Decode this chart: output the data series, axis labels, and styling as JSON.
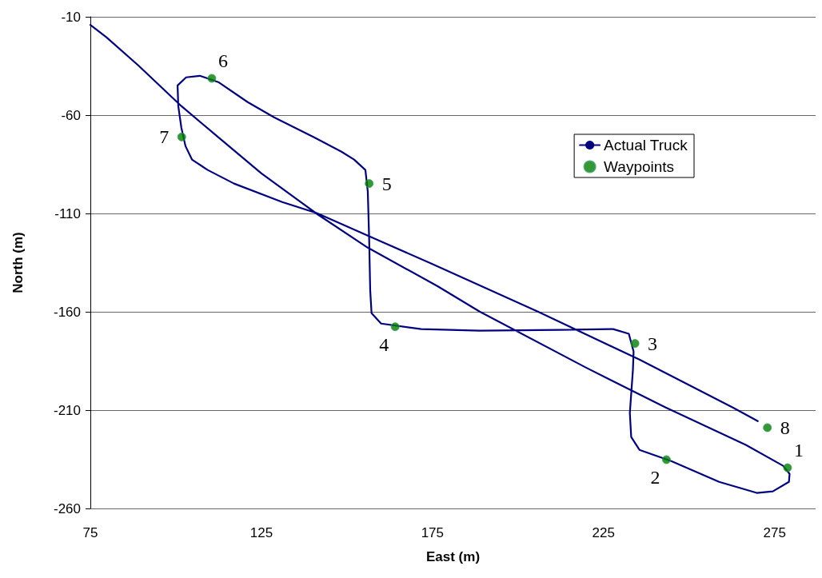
{
  "chart_data": {
    "type": "line",
    "xlabel": "East (m)",
    "ylabel": "North (m)",
    "xlim": [
      75,
      287
    ],
    "xticks": [
      75,
      125,
      175,
      225,
      275
    ],
    "ylim": [
      -260,
      -10
    ],
    "yticks": [
      -260,
      -210,
      -160,
      -110,
      -60,
      -10
    ],
    "grid": "y",
    "legend": "right",
    "series": [
      {
        "name": "Actual Truck",
        "color": "#000080",
        "marker": "none",
        "line_style": "solid",
        "x": [
          75.0,
          79.7,
          89.0,
          101.6,
          111.0,
          125.0,
          141.3,
          156.1,
          176.4,
          188.8,
          219.8,
          243.2,
          266.6,
          277.5,
          279.4,
          279.2,
          274.5,
          269.8,
          258.8,
          244.8,
          235.5,
          233.1,
          232.7,
          233.6,
          233.8,
          232.4,
          227.8,
          212.1,
          188.8,
          171.7,
          160.0,
          157.2,
          156.8,
          156.5,
          156.1,
          155.4,
          152.1,
          148.4,
          140.4,
          128.7,
          121.0,
          112.4,
          107.0,
          103.0,
          100.5,
          100.7,
          101.6,
          102.8,
          104.7,
          109.3,
          117.0,
          131.1,
          141.3,
          156.1,
          174.7,
          205.8,
          235.5,
          262.8,
          270.1
        ],
        "values": [
          -14.1,
          -20.4,
          -34.7,
          -55.4,
          -69.2,
          -89.6,
          -110.3,
          -127.4,
          -146.9,
          -159.9,
          -188.3,
          -208.7,
          -227.7,
          -238.3,
          -242.4,
          -246.5,
          -251.3,
          -252.1,
          -246.5,
          -235.9,
          -230.2,
          -223.7,
          -211.5,
          -189.5,
          -180.2,
          -171.2,
          -168.8,
          -169.2,
          -169.6,
          -168.8,
          -166.0,
          -160.7,
          -148.9,
          -123.3,
          -98.9,
          -87.9,
          -82.6,
          -78.6,
          -71.3,
          -61.1,
          -53.4,
          -43.2,
          -40.0,
          -40.8,
          -44.9,
          -55.4,
          -66.4,
          -75.7,
          -82.6,
          -87.9,
          -94.8,
          -104.2,
          -109.9,
          -121.3,
          -135.5,
          -159.9,
          -184.3,
          -208.7,
          -215.6
        ]
      },
      {
        "name": "Waypoints",
        "type": "scatter",
        "color": "#008000",
        "marker": "circle",
        "x": [
          278.8,
          243.4,
          234.2,
          164.1,
          156.5,
          110.5,
          101.7,
          272.9
        ],
        "values": [
          -239.3,
          -235.2,
          -176.1,
          -167.6,
          -94.8,
          -41.3,
          -71.1,
          -218.9
        ]
      }
    ],
    "annotations": [
      {
        "text": "1",
        "x": 278.8,
        "y": -239.3
      },
      {
        "text": "2",
        "x": 243.4,
        "y": -235.2
      },
      {
        "text": "3",
        "x": 234.2,
        "y": -176.1
      },
      {
        "text": "4",
        "x": 164.1,
        "y": -167.6
      },
      {
        "text": "5",
        "x": 156.5,
        "y": -94.8
      },
      {
        "text": "6",
        "x": 110.5,
        "y": -41.3
      },
      {
        "text": "7",
        "x": 101.7,
        "y": -71.1
      },
      {
        "text": "8",
        "x": 272.9,
        "y": -218.9
      }
    ]
  }
}
